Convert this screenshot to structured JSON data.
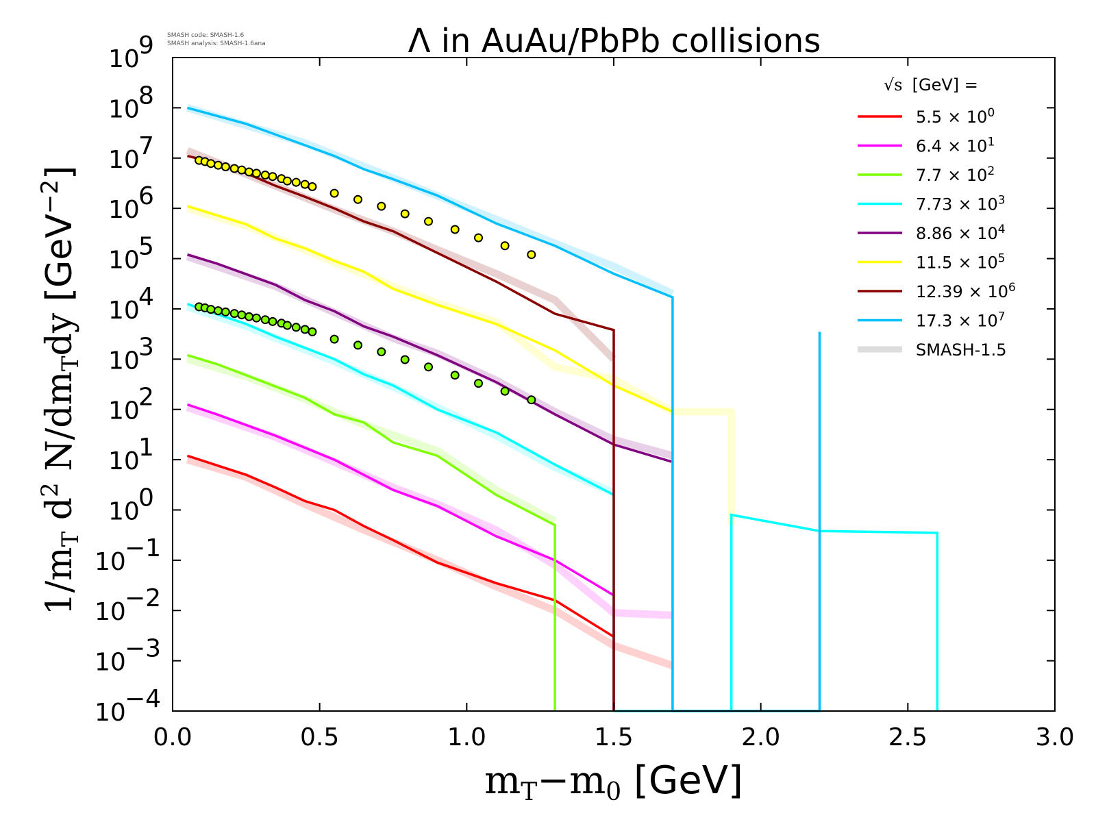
{
  "chart_data": {
    "type": "line",
    "title": "Λ in AuAu/PbPb collisions",
    "xlabel": "m_T−m_0 [GeV]",
    "xlabel_parts": {
      "m": "m",
      "T": "T",
      "minus": "−",
      "m2": "m",
      "zero": "0",
      "unit": " [GeV]"
    },
    "ylabel": "1/m_T d^2 N/dm_T dy [GeV^−2]",
    "ylabel_parts": {
      "a": "1/m",
      "T": "T",
      "d": " d",
      "two": "2",
      "N": " N/dm",
      "T2": "T",
      "dy": "dy",
      "unit": " [GeV",
      "exp": "−2",
      "close": "]"
    },
    "xlim": [
      0.0,
      3.0
    ],
    "ylim_log10": [
      -4,
      9
    ],
    "x_ticks": [
      "0.0",
      "0.5",
      "1.0",
      "1.5",
      "2.0",
      "2.5",
      "3.0"
    ],
    "y_ticks": [
      {
        "exp": 9,
        "base": "10",
        "sup": "9"
      },
      {
        "exp": 8,
        "base": "10",
        "sup": "8"
      },
      {
        "exp": 7,
        "base": "10",
        "sup": "7"
      },
      {
        "exp": 6,
        "base": "10",
        "sup": "6"
      },
      {
        "exp": 5,
        "base": "10",
        "sup": "5"
      },
      {
        "exp": 4,
        "base": "10",
        "sup": "4"
      },
      {
        "exp": 3,
        "base": "10",
        "sup": "3"
      },
      {
        "exp": 2,
        "base": "10",
        "sup": "2"
      },
      {
        "exp": 1,
        "base": "10",
        "sup": "1"
      },
      {
        "exp": 0,
        "base": "10",
        "sup": "0"
      },
      {
        "exp": -1,
        "base": "10",
        "sup": "−1"
      },
      {
        "exp": -2,
        "base": "10",
        "sup": "−2"
      },
      {
        "exp": -3,
        "base": "10",
        "sup": "−3"
      },
      {
        "exp": -4,
        "base": "10",
        "sup": "−4"
      }
    ],
    "legend": {
      "title": "√s  [GeV] =",
      "sqrt_symbol": "√s",
      "unit_text": "[GeV] =",
      "placement": "top-right",
      "entries": [
        {
          "label": "5.5",
          "times": "× 10",
          "sup": "0",
          "color": "#ff0000"
        },
        {
          "label": "6.4",
          "times": "× 10",
          "sup": "1",
          "color": "#ff00ff"
        },
        {
          "label": "7.7",
          "times": "× 10",
          "sup": "2",
          "color": "#7fff00"
        },
        {
          "label": "7.73",
          "times": "× 10",
          "sup": "3",
          "color": "#00ffff"
        },
        {
          "label": "8.86",
          "times": "× 10",
          "sup": "4",
          "color": "#800080"
        },
        {
          "label": "11.5",
          "times": "× 10",
          "sup": "5",
          "color": "#ffff00"
        },
        {
          "label": "12.39",
          "times": "× 10",
          "sup": "6",
          "color": "#8b0000"
        },
        {
          "label": "17.3",
          "times": "× 10",
          "sup": "7",
          "color": "#00bfff"
        },
        {
          "label": "SMASH-1.5",
          "times": "",
          "sup": "",
          "color": "#dddddd"
        }
      ]
    },
    "version_info": {
      "line1": "SMASH code:      SMASH-1.6",
      "line2": "SMASH analysis: SMASH-1.6ana"
    },
    "series": [
      {
        "name": "5.5 × 10^0",
        "color": "#ff0000",
        "points": [
          [
            0.05,
            12
          ],
          [
            0.25,
            5
          ],
          [
            0.35,
            2.8
          ],
          [
            0.45,
            1.5
          ],
          [
            0.55,
            1.0
          ],
          [
            0.65,
            0.48
          ],
          [
            0.75,
            0.25
          ],
          [
            0.9,
            0.09
          ],
          [
            1.1,
            0.035
          ],
          [
            1.3,
            0.016
          ],
          [
            1.5,
            0.003
          ],
          [
            1.5,
            0.0001
          ]
        ],
        "ref": [
          [
            0.05,
            10
          ],
          [
            0.25,
            4.5
          ],
          [
            0.45,
            1.3
          ],
          [
            0.65,
            0.4
          ],
          [
            0.9,
            0.1
          ],
          [
            1.1,
            0.03
          ],
          [
            1.3,
            0.01
          ],
          [
            1.5,
            0.002
          ],
          [
            1.7,
            0.0008
          ]
        ]
      },
      {
        "name": "6.4 × 10^1",
        "color": "#ff00ff",
        "points": [
          [
            0.05,
            125
          ],
          [
            0.15,
            80
          ],
          [
            0.35,
            30
          ],
          [
            0.55,
            10
          ],
          [
            0.75,
            2.5
          ],
          [
            0.9,
            1.2
          ],
          [
            1.1,
            0.3
          ],
          [
            1.3,
            0.1
          ],
          [
            1.5,
            0.02
          ],
          [
            1.5,
            0.0001
          ]
        ],
        "ref": [
          [
            0.05,
            110
          ],
          [
            0.35,
            28
          ],
          [
            0.55,
            9
          ],
          [
            0.75,
            2.8
          ],
          [
            0.9,
            1.3
          ],
          [
            1.1,
            0.4
          ],
          [
            1.3,
            0.08
          ],
          [
            1.5,
            0.009
          ],
          [
            1.7,
            0.008
          ]
        ]
      },
      {
        "name": "7.7 × 10^2",
        "color": "#7fff00",
        "points": [
          [
            0.05,
            1200
          ],
          [
            0.15,
            800
          ],
          [
            0.25,
            480
          ],
          [
            0.45,
            170
          ],
          [
            0.55,
            80
          ],
          [
            0.65,
            55
          ],
          [
            0.75,
            22
          ],
          [
            0.9,
            12
          ],
          [
            1.1,
            2
          ],
          [
            1.3,
            0.5
          ],
          [
            1.3,
            0.0001
          ]
        ],
        "ref": [
          [
            0.05,
            1000
          ],
          [
            0.25,
            450
          ],
          [
            0.45,
            160
          ],
          [
            0.65,
            50
          ],
          [
            0.9,
            15
          ],
          [
            1.1,
            2.5
          ],
          [
            1.3,
            0.6
          ]
        ]
      },
      {
        "name": "7.73 × 10^3",
        "color": "#00ffff",
        "points": [
          [
            0.05,
            12500
          ],
          [
            0.25,
            5000
          ],
          [
            0.35,
            2800
          ],
          [
            0.55,
            1000
          ],
          [
            0.65,
            500
          ],
          [
            0.75,
            300
          ],
          [
            0.9,
            100
          ],
          [
            1.1,
            35
          ],
          [
            1.3,
            8
          ],
          [
            1.5,
            2
          ],
          [
            1.5,
            0.0001
          ],
          [
            1.9,
            0.0001
          ],
          [
            1.9,
            0.8
          ],
          [
            2.2,
            0.38
          ],
          [
            2.6,
            0.35
          ],
          [
            2.6,
            0.0001
          ]
        ],
        "ref": [
          [
            0.05,
            11000
          ],
          [
            0.25,
            4500
          ],
          [
            0.55,
            900
          ],
          [
            0.75,
            280
          ],
          [
            0.9,
            110
          ],
          [
            1.1,
            30
          ],
          [
            1.3,
            7
          ],
          [
            1.5,
            2.2
          ]
        ]
      },
      {
        "name": "8.86 × 10^4",
        "color": "#800080",
        "points": [
          [
            0.05,
            120000
          ],
          [
            0.15,
            80000
          ],
          [
            0.35,
            30000
          ],
          [
            0.45,
            15000
          ],
          [
            0.55,
            9000
          ],
          [
            0.65,
            4500
          ],
          [
            0.75,
            2800
          ],
          [
            0.9,
            1200
          ],
          [
            1.1,
            350
          ],
          [
            1.3,
            80
          ],
          [
            1.5,
            20
          ],
          [
            1.7,
            9
          ]
        ],
        "ref": [
          [
            0.05,
            110000
          ],
          [
            0.35,
            28000
          ],
          [
            0.55,
            8500
          ],
          [
            0.75,
            2600
          ],
          [
            0.9,
            1300
          ],
          [
            1.1,
            380
          ],
          [
            1.3,
            90
          ],
          [
            1.5,
            25
          ],
          [
            1.7,
            12
          ]
        ]
      },
      {
        "name": "11.5 × 10^5",
        "color": "#ffff00",
        "points": [
          [
            0.05,
            1100000
          ],
          [
            0.25,
            480000
          ],
          [
            0.35,
            250000
          ],
          [
            0.45,
            160000
          ],
          [
            0.55,
            90000
          ],
          [
            0.65,
            55000
          ],
          [
            0.75,
            25000
          ],
          [
            0.9,
            12000
          ],
          [
            1.1,
            5000
          ],
          [
            1.3,
            1500
          ],
          [
            1.5,
            300
          ],
          [
            1.7,
            90
          ],
          [
            1.7,
            0.0001
          ]
        ],
        "ref": [
          [
            0.05,
            1000000
          ],
          [
            0.25,
            450000
          ],
          [
            0.55,
            85000
          ],
          [
            0.75,
            28000
          ],
          [
            0.9,
            13000
          ],
          [
            1.1,
            5500
          ],
          [
            1.3,
            700
          ],
          [
            1.5,
            400
          ],
          [
            1.7,
            90
          ],
          [
            1.9,
            90
          ],
          [
            1.9,
            1
          ],
          [
            1.9,
            0.5
          ]
        ]
      },
      {
        "name": "12.39 × 10^6",
        "color": "#8b0000",
        "points": [
          [
            0.05,
            11000000
          ],
          [
            0.15,
            8000000
          ],
          [
            0.25,
            5000000
          ],
          [
            0.35,
            2800000
          ],
          [
            0.45,
            1700000
          ],
          [
            0.55,
            1000000
          ],
          [
            0.65,
            550000
          ],
          [
            0.75,
            350000
          ],
          [
            0.9,
            130000
          ],
          [
            1.1,
            35000
          ],
          [
            1.3,
            8000
          ],
          [
            1.5,
            3800
          ],
          [
            1.5,
            0.0001
          ]
        ],
        "ref": [
          [
            0.05,
            14000000
          ],
          [
            0.25,
            4800000
          ],
          [
            0.55,
            950000
          ],
          [
            0.75,
            350000
          ],
          [
            0.9,
            150000
          ],
          [
            1.1,
            50000
          ],
          [
            1.3,
            15000
          ],
          [
            1.5,
            1000
          ]
        ]
      },
      {
        "name": "17.3 × 10^7",
        "color": "#00bfff",
        "points": [
          [
            0.05,
            100000000
          ],
          [
            0.25,
            48000000
          ],
          [
            0.45,
            18000000
          ],
          [
            0.55,
            11000000
          ],
          [
            0.65,
            6000000
          ],
          [
            0.75,
            3800000
          ],
          [
            0.9,
            1800000
          ],
          [
            1.1,
            500000
          ],
          [
            1.3,
            180000
          ],
          [
            1.5,
            50000
          ],
          [
            1.7,
            17000
          ],
          [
            1.7,
            0.0001
          ],
          [
            2.2,
            0.0001
          ],
          [
            2.2,
            3500
          ],
          [
            2.2,
            0.0001
          ]
        ],
        "ref": [
          [
            0.05,
            100000000
          ],
          [
            0.45,
            20000000
          ],
          [
            0.75,
            4000000
          ],
          [
            1.1,
            600000
          ],
          [
            1.3,
            200000
          ],
          [
            1.5,
            70000
          ],
          [
            1.7,
            20000
          ]
        ]
      }
    ],
    "markers": [
      {
        "name": "exp-yellow",
        "fill": "#ffff00",
        "points": [
          [
            0.09,
            9000000
          ],
          [
            0.11,
            8500000
          ],
          [
            0.13,
            7800000
          ],
          [
            0.155,
            7200000
          ],
          [
            0.18,
            6700000
          ],
          [
            0.21,
            6200000
          ],
          [
            0.235,
            5800000
          ],
          [
            0.26,
            5300000
          ],
          [
            0.285,
            5000000
          ],
          [
            0.315,
            4600000
          ],
          [
            0.34,
            4300000
          ],
          [
            0.37,
            3900000
          ],
          [
            0.39,
            3500000
          ],
          [
            0.42,
            3300000
          ],
          [
            0.45,
            3000000
          ],
          [
            0.475,
            2700000
          ],
          [
            0.55,
            2000000
          ],
          [
            0.63,
            1500000
          ],
          [
            0.71,
            1100000
          ],
          [
            0.79,
            780000
          ],
          [
            0.87,
            550000
          ],
          [
            0.96,
            380000
          ],
          [
            1.04,
            260000
          ],
          [
            1.13,
            180000
          ],
          [
            1.22,
            120000
          ]
        ]
      },
      {
        "name": "exp-green",
        "fill": "#7fff00",
        "points": [
          [
            0.09,
            11000
          ],
          [
            0.11,
            10500
          ],
          [
            0.13,
            9800
          ],
          [
            0.155,
            9200
          ],
          [
            0.18,
            8700
          ],
          [
            0.21,
            8100
          ],
          [
            0.235,
            7600
          ],
          [
            0.26,
            7000
          ],
          [
            0.285,
            6600
          ],
          [
            0.315,
            6100
          ],
          [
            0.34,
            5600
          ],
          [
            0.37,
            5200
          ],
          [
            0.39,
            4700
          ],
          [
            0.42,
            4300
          ],
          [
            0.45,
            3900
          ],
          [
            0.475,
            3500
          ],
          [
            0.55,
            2500
          ],
          [
            0.63,
            1900
          ],
          [
            0.71,
            1400
          ],
          [
            0.79,
            980
          ],
          [
            0.87,
            700
          ],
          [
            0.96,
            480
          ],
          [
            1.04,
            330
          ],
          [
            1.13,
            230
          ],
          [
            1.22,
            155
          ]
        ]
      }
    ]
  }
}
